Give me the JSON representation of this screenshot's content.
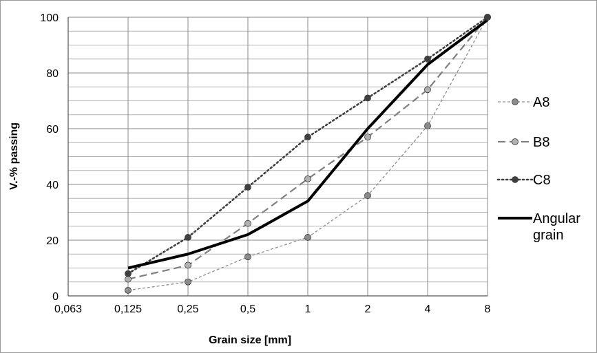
{
  "chart_data": {
    "type": "line",
    "xlabel": "Grain size [mm]",
    "ylabel": "V.-% passing",
    "categories": [
      "0,063",
      "0,125",
      "0,25",
      "0,5",
      "1",
      "2",
      "4",
      "8"
    ],
    "ylim": [
      0,
      100
    ],
    "y_ticks": [
      0,
      20,
      40,
      60,
      80,
      100
    ],
    "y_minor_step": 5,
    "grid": true,
    "legend_position": "right",
    "series": [
      {
        "name": "A8",
        "style": "dashed-thin",
        "color": "#8c8c8c",
        "marker": "circle",
        "marker_fill": "#8c8c8c",
        "values": [
          null,
          2,
          5,
          14,
          21,
          36,
          61,
          100
        ]
      },
      {
        "name": "B8",
        "style": "long-dash",
        "color": "#7f7f7f",
        "marker": "circle",
        "marker_fill": "#b0b0b0",
        "values": [
          null,
          6,
          11,
          26,
          42,
          57,
          74,
          100
        ]
      },
      {
        "name": "C8",
        "style": "dotted",
        "color": "#404040",
        "marker": "circle",
        "marker_fill": "#404040",
        "values": [
          null,
          8,
          21,
          39,
          57,
          71,
          85,
          100
        ]
      },
      {
        "name": "Angular grain",
        "legend_lines": [
          "Angular",
          "grain"
        ],
        "style": "solid-thick",
        "color": "#000000",
        "marker": "none",
        "values": [
          null,
          10,
          15,
          22,
          34,
          60,
          83,
          99
        ]
      }
    ]
  }
}
